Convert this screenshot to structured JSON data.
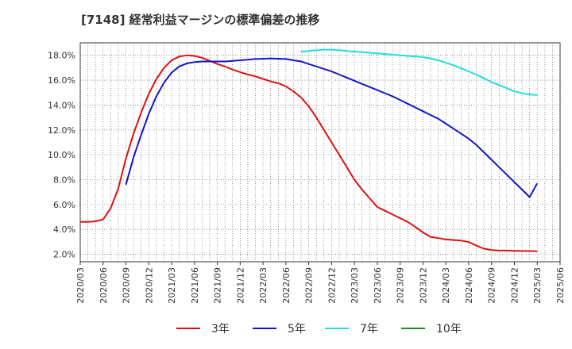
{
  "chart_data": {
    "type": "line",
    "title": "[7148]  経常利益マージンの標準偏差の推移",
    "x_ticks": [
      "2020/03",
      "2020/06",
      "2020/09",
      "2020/12",
      "2021/03",
      "2021/06",
      "2021/09",
      "2021/12",
      "2022/03",
      "2022/06",
      "2022/09",
      "2022/12",
      "2023/03",
      "2023/06",
      "2023/09",
      "2023/12",
      "2024/03",
      "2024/06",
      "2024/09",
      "2024/12",
      "2025/03",
      "2025/06"
    ],
    "y_ticks": [
      "2.0%",
      "4.0%",
      "6.0%",
      "8.0%",
      "10.0%",
      "12.0%",
      "14.0%",
      "16.0%",
      "18.0%"
    ],
    "ylim": [
      1.4,
      19.0
    ],
    "grid": true,
    "legend_position": "bottom",
    "series": [
      {
        "name": "3年",
        "color": "#dd1111",
        "points": [
          [
            "2020/03",
            4.6
          ],
          [
            "2020/04",
            4.6
          ],
          [
            "2020/05",
            4.65
          ],
          [
            "2020/06",
            4.8
          ],
          [
            "2020/07",
            5.7
          ],
          [
            "2020/08",
            7.3
          ],
          [
            "2020/09",
            9.7
          ],
          [
            "2020/10",
            11.7
          ],
          [
            "2020/11",
            13.4
          ],
          [
            "2020/12",
            14.9
          ],
          [
            "2021/01",
            16.1
          ],
          [
            "2021/02",
            17.0
          ],
          [
            "2021/03",
            17.6
          ],
          [
            "2021/04",
            17.9
          ],
          [
            "2021/05",
            18.0
          ],
          [
            "2021/06",
            17.95
          ],
          [
            "2021/07",
            17.8
          ],
          [
            "2021/08",
            17.55
          ],
          [
            "2021/09",
            17.3
          ],
          [
            "2021/10",
            17.1
          ],
          [
            "2021/11",
            16.85
          ],
          [
            "2021/12",
            16.65
          ],
          [
            "2022/01",
            16.45
          ],
          [
            "2022/02",
            16.3
          ],
          [
            "2022/03",
            16.1
          ],
          [
            "2022/04",
            15.9
          ],
          [
            "2022/05",
            15.75
          ],
          [
            "2022/06",
            15.5
          ],
          [
            "2022/07",
            15.1
          ],
          [
            "2022/08",
            14.6
          ],
          [
            "2022/09",
            13.9
          ],
          [
            "2022/10",
            13.0
          ],
          [
            "2022/11",
            12.0
          ],
          [
            "2022/12",
            11.0
          ],
          [
            "2023/01",
            10.0
          ],
          [
            "2023/02",
            9.0
          ],
          [
            "2023/03",
            8.0
          ],
          [
            "2023/04",
            7.2
          ],
          [
            "2023/05",
            6.5
          ],
          [
            "2023/06",
            5.8
          ],
          [
            "2023/07",
            5.5
          ],
          [
            "2023/08",
            5.2
          ],
          [
            "2023/09",
            4.9
          ],
          [
            "2023/10",
            4.6
          ],
          [
            "2023/11",
            4.2
          ],
          [
            "2023/12",
            3.75
          ],
          [
            "2024/01",
            3.4
          ],
          [
            "2024/02",
            3.3
          ],
          [
            "2024/03",
            3.2
          ],
          [
            "2024/04",
            3.15
          ],
          [
            "2024/05",
            3.1
          ],
          [
            "2024/06",
            2.98
          ],
          [
            "2024/07",
            2.7
          ],
          [
            "2024/08",
            2.45
          ],
          [
            "2024/09",
            2.35
          ],
          [
            "2024/10",
            2.3
          ],
          [
            "2024/11",
            2.3
          ],
          [
            "2024/12",
            2.28
          ],
          [
            "2025/01",
            2.27
          ],
          [
            "2025/02",
            2.26
          ],
          [
            "2025/03",
            2.25
          ]
        ]
      },
      {
        "name": "5年",
        "color": "#1515c8",
        "points": [
          [
            "2020/09",
            7.6
          ],
          [
            "2020/10",
            9.8
          ],
          [
            "2020/11",
            11.6
          ],
          [
            "2020/12",
            13.3
          ],
          [
            "2021/01",
            14.7
          ],
          [
            "2021/02",
            15.8
          ],
          [
            "2021/03",
            16.6
          ],
          [
            "2021/04",
            17.1
          ],
          [
            "2021/05",
            17.35
          ],
          [
            "2021/06",
            17.45
          ],
          [
            "2021/07",
            17.5
          ],
          [
            "2021/08",
            17.5
          ],
          [
            "2021/09",
            17.5
          ],
          [
            "2021/10",
            17.5
          ],
          [
            "2021/11",
            17.55
          ],
          [
            "2021/12",
            17.6
          ],
          [
            "2022/01",
            17.65
          ],
          [
            "2022/02",
            17.7
          ],
          [
            "2022/03",
            17.72
          ],
          [
            "2022/04",
            17.75
          ],
          [
            "2022/05",
            17.72
          ],
          [
            "2022/06",
            17.7
          ],
          [
            "2022/07",
            17.6
          ],
          [
            "2022/08",
            17.5
          ],
          [
            "2022/09",
            17.3
          ],
          [
            "2022/10",
            17.1
          ],
          [
            "2022/11",
            16.9
          ],
          [
            "2022/12",
            16.7
          ],
          [
            "2023/01",
            16.45
          ],
          [
            "2023/02",
            16.2
          ],
          [
            "2023/03",
            15.95
          ],
          [
            "2023/04",
            15.7
          ],
          [
            "2023/05",
            15.45
          ],
          [
            "2023/06",
            15.2
          ],
          [
            "2023/07",
            14.95
          ],
          [
            "2023/08",
            14.7
          ],
          [
            "2023/09",
            14.4
          ],
          [
            "2023/10",
            14.1
          ],
          [
            "2023/11",
            13.8
          ],
          [
            "2023/12",
            13.5
          ],
          [
            "2024/01",
            13.2
          ],
          [
            "2024/02",
            12.9
          ],
          [
            "2024/03",
            12.5
          ],
          [
            "2024/04",
            12.1
          ],
          [
            "2024/05",
            11.7
          ],
          [
            "2024/06",
            11.3
          ],
          [
            "2024/07",
            10.8
          ],
          [
            "2024/08",
            10.2
          ],
          [
            "2024/09",
            9.6
          ],
          [
            "2024/10",
            9.0
          ],
          [
            "2024/11",
            8.4
          ],
          [
            "2024/12",
            7.8
          ],
          [
            "2025/01",
            7.2
          ],
          [
            "2025/02",
            6.6
          ],
          [
            "2025/03",
            7.7
          ]
        ]
      },
      {
        "name": "7年",
        "color": "#22dddd",
        "points": [
          [
            "2022/08",
            18.3
          ],
          [
            "2022/09",
            18.35
          ],
          [
            "2022/10",
            18.4
          ],
          [
            "2022/11",
            18.45
          ],
          [
            "2022/12",
            18.45
          ],
          [
            "2023/01",
            18.4
          ],
          [
            "2023/02",
            18.35
          ],
          [
            "2023/03",
            18.3
          ],
          [
            "2023/04",
            18.25
          ],
          [
            "2023/05",
            18.2
          ],
          [
            "2023/06",
            18.15
          ],
          [
            "2023/07",
            18.1
          ],
          [
            "2023/08",
            18.05
          ],
          [
            "2023/09",
            18.0
          ],
          [
            "2023/10",
            17.95
          ],
          [
            "2023/11",
            17.9
          ],
          [
            "2023/12",
            17.85
          ],
          [
            "2024/01",
            17.75
          ],
          [
            "2024/02",
            17.6
          ],
          [
            "2024/03",
            17.4
          ],
          [
            "2024/04",
            17.2
          ],
          [
            "2024/05",
            16.95
          ],
          [
            "2024/06",
            16.7
          ],
          [
            "2024/07",
            16.45
          ],
          [
            "2024/08",
            16.15
          ],
          [
            "2024/09",
            15.85
          ],
          [
            "2024/10",
            15.6
          ],
          [
            "2024/11",
            15.35
          ],
          [
            "2024/12",
            15.1
          ],
          [
            "2025/01",
            14.95
          ],
          [
            "2025/02",
            14.85
          ],
          [
            "2025/03",
            14.8
          ]
        ]
      },
      {
        "name": "10年",
        "color": "#228b22",
        "points": []
      }
    ]
  }
}
